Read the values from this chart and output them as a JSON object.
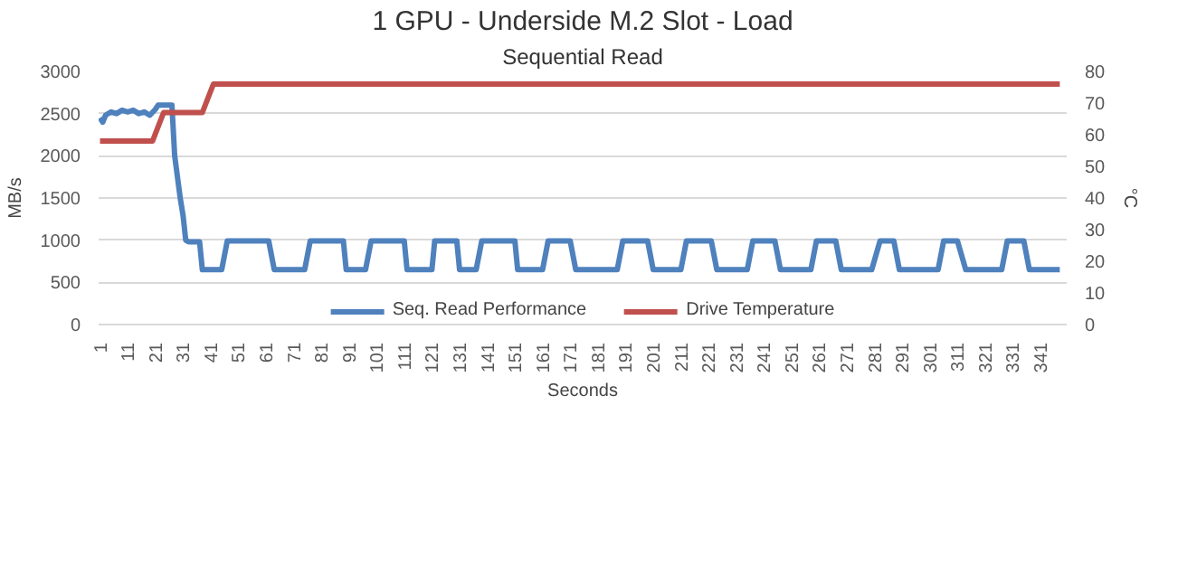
{
  "chart_data": {
    "type": "line",
    "title": "1 GPU - Underside M.2 Slot - Load",
    "subtitle": "Sequential Read",
    "xlabel": "Seconds",
    "ylabel": "MB/s",
    "y2label": "°C",
    "xlim": [
      0.5,
      350.5
    ],
    "xticks": [
      1,
      11,
      21,
      31,
      41,
      51,
      61,
      71,
      81,
      91,
      101,
      111,
      121,
      131,
      141,
      151,
      161,
      171,
      181,
      191,
      201,
      211,
      221,
      231,
      241,
      251,
      261,
      271,
      281,
      291,
      301,
      311,
      321,
      331,
      341
    ],
    "ylim": [
      0,
      3000
    ],
    "yticks": [
      0,
      500,
      1000,
      1500,
      2000,
      2500,
      3000
    ],
    "y2lim": [
      0,
      80
    ],
    "y2ticks": [
      0,
      10,
      20,
      30,
      40,
      50,
      60,
      70,
      80
    ],
    "grid": "y",
    "legend": "bottom",
    "marker": "none",
    "line_style": "solid",
    "series": [
      {
        "name": "Seq. Read Performance",
        "color": "#4f81bd",
        "x": [
          1,
          2,
          3,
          5,
          7,
          9,
          11,
          13,
          15,
          17,
          19,
          21,
          22,
          27,
          28,
          30,
          31,
          32,
          33,
          37,
          38,
          45,
          47,
          62,
          64,
          75,
          77,
          89,
          90,
          97,
          99,
          111,
          112,
          121,
          122,
          130,
          131,
          137,
          139,
          151,
          152,
          161,
          163,
          171,
          173,
          188,
          190,
          199,
          201,
          211,
          213,
          222,
          224,
          235,
          237,
          245,
          247,
          258,
          260,
          267,
          269,
          280,
          283,
          288,
          290,
          304,
          306,
          311,
          314,
          327,
          329,
          335,
          337,
          348
        ],
        "values": [
          2450,
          2400,
          2480,
          2520,
          2500,
          2540,
          2520,
          2540,
          2500,
          2520,
          2480,
          2550,
          2600,
          2600,
          2000,
          1500,
          1300,
          1000,
          980,
          980,
          650,
          650,
          990,
          990,
          650,
          650,
          990,
          990,
          650,
          650,
          990,
          990,
          650,
          650,
          990,
          990,
          650,
          650,
          990,
          990,
          650,
          650,
          990,
          990,
          650,
          650,
          990,
          990,
          650,
          650,
          990,
          990,
          650,
          650,
          990,
          990,
          650,
          650,
          990,
          990,
          650,
          650,
          990,
          990,
          650,
          650,
          990,
          990,
          650,
          650,
          990,
          990,
          650,
          650
        ]
      },
      {
        "name": "Drive Temperature",
        "color": "#c0504d",
        "axis": "y2",
        "x": [
          1,
          20,
          24,
          38,
          42,
          348
        ],
        "values": [
          58,
          58,
          67,
          67,
          76,
          76
        ]
      }
    ]
  }
}
